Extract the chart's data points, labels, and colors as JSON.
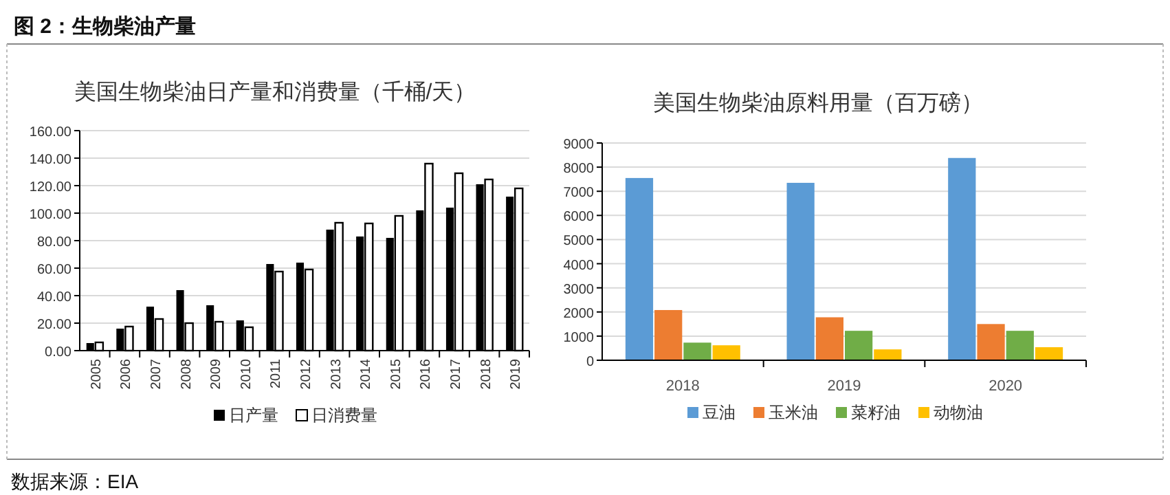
{
  "chart_data": [
    {
      "type": "bar",
      "title": "美国生物柴油日产量和消费量（千桶/天）",
      "categories": [
        "2005",
        "2006",
        "2007",
        "2008",
        "2009",
        "2010",
        "2011",
        "2012",
        "2013",
        "2014",
        "2015",
        "2016",
        "2017",
        "2018",
        "2019"
      ],
      "series": [
        {
          "name": "日产量",
          "color": "#000000",
          "values": [
            5.5,
            16,
            32,
            44,
            33,
            22,
            63,
            64,
            88,
            83,
            82,
            102,
            104,
            121,
            112
          ]
        },
        {
          "name": "日消费量",
          "color": "#ffffff",
          "values": [
            6,
            17.5,
            23,
            20,
            21,
            17,
            57.5,
            59,
            93,
            92.5,
            98,
            136,
            129,
            124.5,
            118
          ]
        }
      ],
      "ylim": [
        0,
        160
      ],
      "yticks": [
        {
          "value": 0,
          "label": "0.00"
        },
        {
          "value": 20,
          "label": "20.00"
        },
        {
          "value": 40,
          "label": "40.00"
        },
        {
          "value": 60,
          "label": "60.00"
        },
        {
          "value": 80,
          "label": "80.00"
        },
        {
          "value": 100,
          "label": "100.00"
        },
        {
          "value": 120,
          "label": "120.00"
        },
        {
          "value": 140,
          "label": "140.00"
        },
        {
          "value": 160,
          "label": "160.00"
        }
      ],
      "grid": "y",
      "legend": "bottom",
      "annotations": [
        "图 2：生物柴油产量",
        "数据来源：EIA"
      ]
    },
    {
      "type": "bar",
      "title": "美国生物柴油原料用量（百万磅）",
      "categories": [
        "2018",
        "2019",
        "2020"
      ],
      "series": [
        {
          "name": "豆油",
          "color": "#5b9bd5",
          "values": [
            7550,
            7350,
            8380
          ]
        },
        {
          "name": "玉米油",
          "color": "#ed7d31",
          "values": [
            2080,
            1780,
            1500
          ]
        },
        {
          "name": "菜籽油",
          "color": "#70ad47",
          "values": [
            730,
            1220,
            1220
          ]
        },
        {
          "name": "动物油",
          "color": "#ffc000",
          "values": [
            620,
            450,
            540
          ]
        }
      ],
      "ylim": [
        0,
        9000
      ],
      "yticks": [
        0,
        1000,
        2000,
        3000,
        4000,
        5000,
        6000,
        7000,
        8000,
        9000
      ],
      "grid": "y",
      "legend": "bottom"
    }
  ]
}
